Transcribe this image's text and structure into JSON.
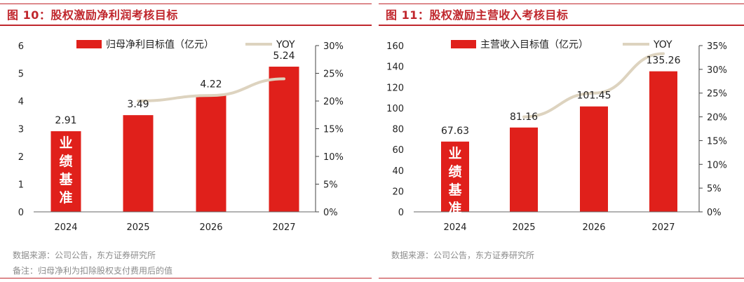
{
  "colors": {
    "bar": "#e0201b",
    "line": "#ddd3bf",
    "title": "#c0272d",
    "axis": "#222222",
    "note": "#8c8c8c"
  },
  "charts": [
    {
      "title": "图 10：股权激励净利润考核目标",
      "notes": [
        "数据来源：公司公告，东方证券研究所",
        "备注：归母净利为扣除股权支付费用后的值"
      ],
      "baseline_tag": "业绩基准",
      "chart_data": {
        "type": "bar",
        "categories": [
          "2024",
          "2025",
          "2026",
          "2027"
        ],
        "series": [
          {
            "name": "归母净利目标值（亿元）",
            "type": "bar",
            "axis": "left",
            "values": [
              2.91,
              3.49,
              4.22,
              5.24
            ],
            "labels": [
              "2.91",
              "3.49",
              "4.22",
              "5.24"
            ]
          },
          {
            "name": "YOY",
            "type": "line",
            "axis": "right",
            "values": [
              null,
              20,
              21,
              24
            ]
          }
        ],
        "ylim": [
          0,
          6
        ],
        "yticks": [
          0,
          1,
          2,
          3,
          4,
          5,
          6
        ],
        "y2lim": [
          0,
          30
        ],
        "y2ticks": [
          "0%",
          "5%",
          "10%",
          "15%",
          "20%",
          "25%",
          "30%"
        ],
        "legend": "top-center",
        "grid": false
      }
    },
    {
      "title": "图 11：股权激励主营收入考核目标",
      "notes": [
        "数据来源：公司公告，东方证券研究所"
      ],
      "baseline_tag": "业绩基准",
      "chart_data": {
        "type": "bar",
        "categories": [
          "2024",
          "2025",
          "2026",
          "2027"
        ],
        "series": [
          {
            "name": "主营收入目标值（亿元）",
            "type": "bar",
            "axis": "left",
            "values": [
              67.63,
              81.16,
              101.45,
              135.26
            ],
            "labels": [
              "67.63",
              "81.16",
              "101.45",
              "135.26"
            ]
          },
          {
            "name": "YOY",
            "type": "line",
            "axis": "right",
            "values": [
              null,
              20,
              25,
              33.3
            ]
          }
        ],
        "ylim": [
          0,
          160
        ],
        "yticks": [
          0,
          20,
          40,
          60,
          80,
          100,
          120,
          140,
          160
        ],
        "y2lim": [
          0,
          35
        ],
        "y2ticks": [
          "0%",
          "5%",
          "10%",
          "15%",
          "20%",
          "25%",
          "30%",
          "35%"
        ],
        "legend": "top-center",
        "grid": false
      }
    }
  ]
}
